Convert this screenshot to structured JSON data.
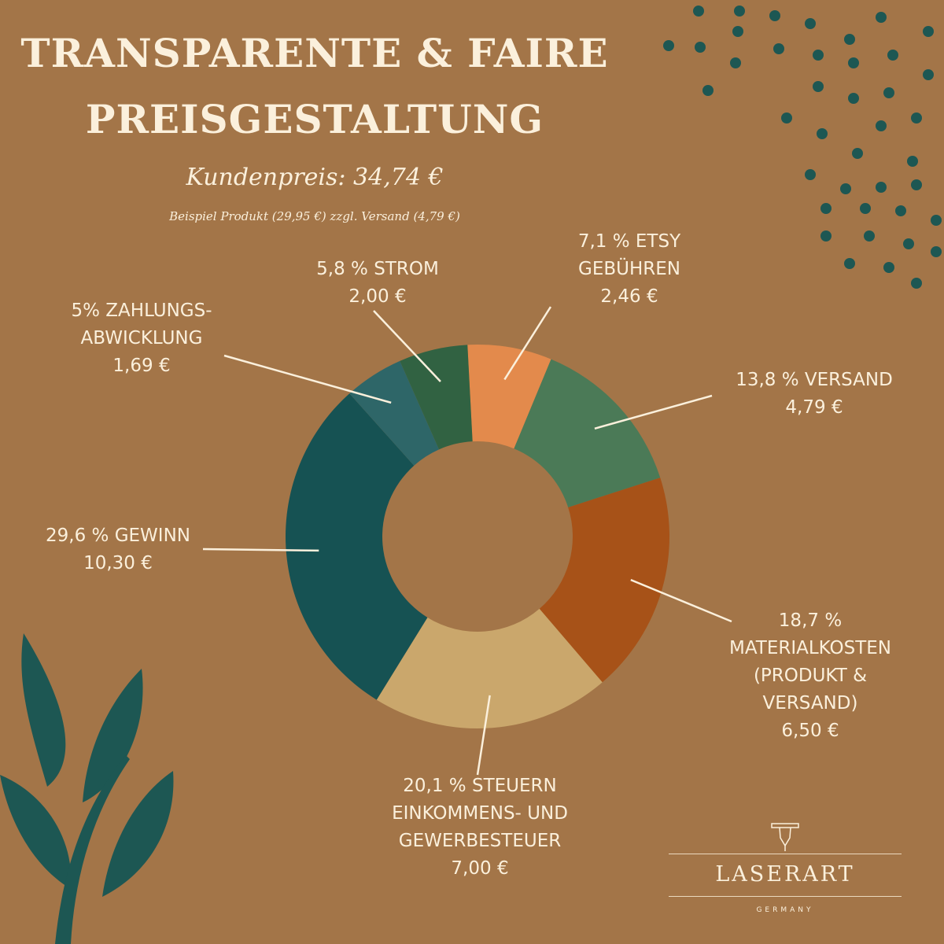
{
  "header": {
    "title_line1": "TRANSPARENTE & FAIRE",
    "title_line2": "PREISGESTALTUNG",
    "customer_price": "Kundenpreis:  34,74  €",
    "example": "Beispiel Produkt (29,95 €) zzgl. Versand (4,79 €)"
  },
  "chart_data": {
    "type": "pie",
    "donut": true,
    "slices": [
      {
        "label_lines": [
          "7,1 % ETSY",
          "GEBÜHREN",
          "2,46 €"
        ],
        "percent": 7.1,
        "value": 2.46,
        "color": "#E38A4C"
      },
      {
        "label_lines": [
          "13,8 % VERSAND",
          "4,79 €"
        ],
        "percent": 13.8,
        "value": 4.79,
        "color": "#4B7A57"
      },
      {
        "label_lines": [
          "18,7 %",
          "MATERIALKOSTEN",
          "(PRODUKT &",
          "VERSAND)",
          "6,50 €"
        ],
        "percent": 18.7,
        "value": 6.5,
        "color": "#A75218"
      },
      {
        "label_lines": [
          "20,1 % STEUERN",
          "EINKOMMENS- UND",
          "GEWERBESTEUER",
          "7,00 €"
        ],
        "percent": 20.1,
        "value": 7.0,
        "color": "#CAA76C"
      },
      {
        "label_lines": [
          "29,6 % GEWINN",
          "10,30 €"
        ],
        "percent": 29.6,
        "value": 10.3,
        "color": "#165253"
      },
      {
        "label_lines": [
          "5% ZAHLUNGS-",
          "ABWICKLUNG",
          "1,69 €"
        ],
        "percent": 5.0,
        "value": 1.69,
        "color": "#2E6668"
      },
      {
        "label_lines": [
          "5,8 % STROM",
          "2,00 €"
        ],
        "percent": 5.8,
        "value": 2.0,
        "color": "#316242"
      }
    ]
  },
  "logo": {
    "brand": "LASERART",
    "sub": "GERMANY"
  },
  "colors": {
    "background": "#A37548",
    "text": "#FBF0DC",
    "decor": "#1D5753"
  }
}
